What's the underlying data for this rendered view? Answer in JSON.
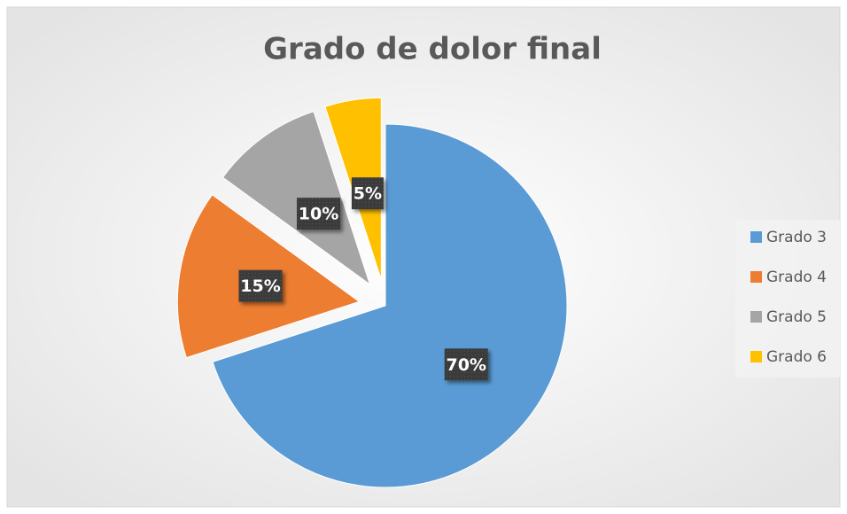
{
  "chart_data": {
    "type": "pie",
    "title": "Grado de dolor final",
    "categories": [
      "Grado 3",
      "Grado 4",
      "Grado 5",
      "Grado 6"
    ],
    "values": [
      70,
      15,
      10,
      5
    ],
    "value_labels": [
      "70%",
      "15%",
      "10%",
      "5%"
    ],
    "colors": [
      "#5b9bd5",
      "#ed7d31",
      "#a5a5a5",
      "#ffc000"
    ],
    "legend": "right"
  }
}
